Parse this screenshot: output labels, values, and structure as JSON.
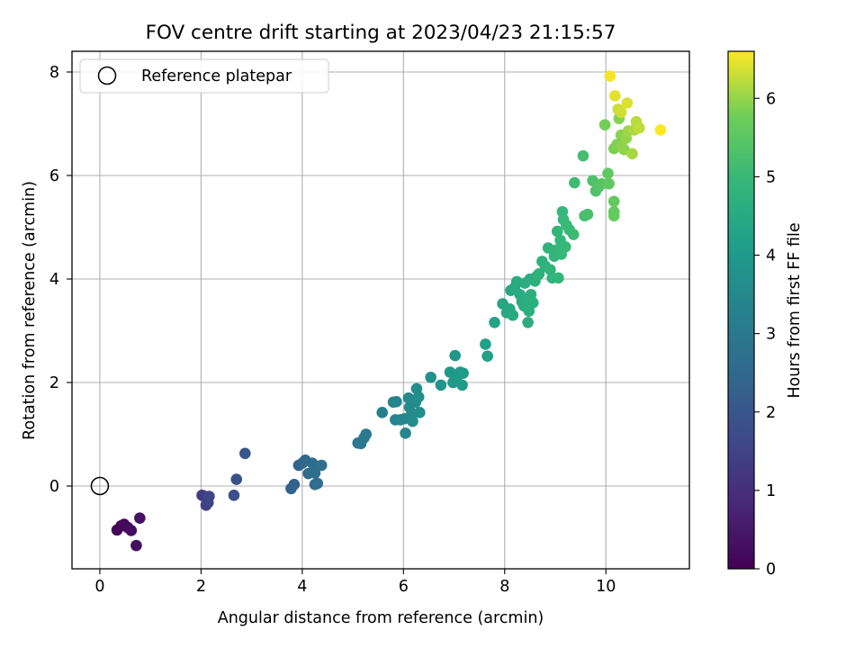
{
  "chart_data": {
    "type": "scatter",
    "title": "FOV centre drift starting at 2023/04/23 21:15:57",
    "xlabel": "Angular distance from reference (arcmin)",
    "ylabel": "Rotation from reference (arcmin)",
    "xlim": [
      -0.55,
      11.65
    ],
    "ylim": [
      -1.6,
      8.4
    ],
    "x_ticks": [
      0,
      2,
      4,
      6,
      8,
      10
    ],
    "y_ticks": [
      0,
      2,
      4,
      6,
      8
    ],
    "grid": true,
    "legend": {
      "position": "upper-left",
      "entries": [
        "Reference platepar"
      ]
    },
    "reference_point": {
      "x": 0,
      "y": 0,
      "label": "Reference platepar"
    },
    "colorbar": {
      "label": "Hours from first FF file",
      "colormap": "viridis",
      "min": 0,
      "max": 6.6,
      "ticks": [
        0,
        1,
        2,
        3,
        4,
        5,
        6
      ]
    },
    "points": [
      {
        "x": 0.34,
        "y": -0.85,
        "h": 0.05
      },
      {
        "x": 0.42,
        "y": -0.77,
        "h": 0.1
      },
      {
        "x": 0.48,
        "y": -0.74,
        "h": 0.15
      },
      {
        "x": 0.55,
        "y": -0.8,
        "h": 0.2
      },
      {
        "x": 0.62,
        "y": -0.86,
        "h": 0.25
      },
      {
        "x": 0.72,
        "y": -1.15,
        "h": 0.3
      },
      {
        "x": 0.79,
        "y": -0.62,
        "h": 0.35
      },
      {
        "x": 2.02,
        "y": -0.18,
        "h": 1.3
      },
      {
        "x": 2.08,
        "y": -0.2,
        "h": 1.35
      },
      {
        "x": 2.12,
        "y": -0.25,
        "h": 1.4
      },
      {
        "x": 2.1,
        "y": -0.37,
        "h": 1.45
      },
      {
        "x": 2.14,
        "y": -0.32,
        "h": 1.5
      },
      {
        "x": 2.16,
        "y": -0.2,
        "h": 1.55
      },
      {
        "x": 2.65,
        "y": -0.18,
        "h": 1.8
      },
      {
        "x": 2.7,
        "y": 0.13,
        "h": 1.9
      },
      {
        "x": 2.87,
        "y": 0.63,
        "h": 2.0
      },
      {
        "x": 3.78,
        "y": -0.05,
        "h": 2.3
      },
      {
        "x": 3.84,
        "y": 0.03,
        "h": 2.35
      },
      {
        "x": 3.93,
        "y": 0.4,
        "h": 2.4
      },
      {
        "x": 4.0,
        "y": 0.44,
        "h": 2.45
      },
      {
        "x": 4.06,
        "y": 0.5,
        "h": 2.5
      },
      {
        "x": 4.12,
        "y": 0.24,
        "h": 2.55
      },
      {
        "x": 4.2,
        "y": 0.44,
        "h": 2.6
      },
      {
        "x": 4.25,
        "y": 0.03,
        "h": 2.65
      },
      {
        "x": 4.3,
        "y": 0.05,
        "h": 2.7
      },
      {
        "x": 4.38,
        "y": 0.4,
        "h": 2.75
      },
      {
        "x": 4.25,
        "y": 0.25,
        "h": 2.7
      },
      {
        "x": 5.1,
        "y": 0.83,
        "h": 2.95
      },
      {
        "x": 5.16,
        "y": 0.82,
        "h": 3.0
      },
      {
        "x": 5.22,
        "y": 0.93,
        "h": 3.02
      },
      {
        "x": 5.26,
        "y": 1.0,
        "h": 3.05
      },
      {
        "x": 5.58,
        "y": 1.42,
        "h": 3.2
      },
      {
        "x": 5.8,
        "y": 1.62,
        "h": 3.35
      },
      {
        "x": 5.86,
        "y": 1.63,
        "h": 3.38
      },
      {
        "x": 5.84,
        "y": 1.28,
        "h": 3.4
      },
      {
        "x": 5.94,
        "y": 1.28,
        "h": 3.42
      },
      {
        "x": 6.02,
        "y": 1.3,
        "h": 3.45
      },
      {
        "x": 6.04,
        "y": 1.02,
        "h": 3.45
      },
      {
        "x": 6.12,
        "y": 1.52,
        "h": 3.5
      },
      {
        "x": 6.1,
        "y": 1.7,
        "h": 3.52
      },
      {
        "x": 6.16,
        "y": 1.4,
        "h": 3.55
      },
      {
        "x": 6.18,
        "y": 1.25,
        "h": 3.57
      },
      {
        "x": 6.24,
        "y": 1.62,
        "h": 3.6
      },
      {
        "x": 6.26,
        "y": 1.88,
        "h": 3.62
      },
      {
        "x": 6.3,
        "y": 1.72,
        "h": 3.64
      },
      {
        "x": 6.32,
        "y": 1.42,
        "h": 3.66
      },
      {
        "x": 6.54,
        "y": 2.1,
        "h": 3.75
      },
      {
        "x": 6.74,
        "y": 1.95,
        "h": 3.85
      },
      {
        "x": 6.92,
        "y": 2.2,
        "h": 3.9
      },
      {
        "x": 6.98,
        "y": 2.0,
        "h": 3.92
      },
      {
        "x": 7.02,
        "y": 2.52,
        "h": 3.95
      },
      {
        "x": 7.06,
        "y": 2.12,
        "h": 3.97
      },
      {
        "x": 7.12,
        "y": 2.2,
        "h": 4.0
      },
      {
        "x": 7.18,
        "y": 2.18,
        "h": 4.02
      },
      {
        "x": 7.16,
        "y": 1.95,
        "h": 4.03
      },
      {
        "x": 7.62,
        "y": 2.74,
        "h": 4.2
      },
      {
        "x": 7.66,
        "y": 2.51,
        "h": 4.22
      },
      {
        "x": 7.8,
        "y": 3.16,
        "h": 4.3
      },
      {
        "x": 7.96,
        "y": 3.52,
        "h": 4.38
      },
      {
        "x": 8.04,
        "y": 3.35,
        "h": 4.42
      },
      {
        "x": 8.1,
        "y": 3.42,
        "h": 4.45
      },
      {
        "x": 8.12,
        "y": 3.78,
        "h": 4.47
      },
      {
        "x": 8.16,
        "y": 3.3,
        "h": 4.48
      },
      {
        "x": 8.2,
        "y": 3.84,
        "h": 4.5
      },
      {
        "x": 8.24,
        "y": 3.95,
        "h": 4.52
      },
      {
        "x": 8.3,
        "y": 3.7,
        "h": 4.55
      },
      {
        "x": 8.34,
        "y": 3.56,
        "h": 4.57
      },
      {
        "x": 8.38,
        "y": 3.48,
        "h": 4.58
      },
      {
        "x": 8.4,
        "y": 3.92,
        "h": 4.6
      },
      {
        "x": 8.44,
        "y": 3.62,
        "h": 4.62
      },
      {
        "x": 8.46,
        "y": 3.16,
        "h": 4.62
      },
      {
        "x": 8.48,
        "y": 3.38,
        "h": 4.64
      },
      {
        "x": 8.5,
        "y": 4.0,
        "h": 4.66
      },
      {
        "x": 8.52,
        "y": 3.7,
        "h": 4.67
      },
      {
        "x": 8.56,
        "y": 3.54,
        "h": 4.68
      },
      {
        "x": 8.6,
        "y": 3.96,
        "h": 4.7
      },
      {
        "x": 8.64,
        "y": 4.06,
        "h": 4.72
      },
      {
        "x": 8.68,
        "y": 4.1,
        "h": 4.74
      },
      {
        "x": 8.74,
        "y": 4.34,
        "h": 4.76
      },
      {
        "x": 8.8,
        "y": 4.25,
        "h": 4.78
      },
      {
        "x": 8.86,
        "y": 4.6,
        "h": 4.8
      },
      {
        "x": 8.9,
        "y": 4.18,
        "h": 4.82
      },
      {
        "x": 8.94,
        "y": 4.02,
        "h": 4.84
      },
      {
        "x": 8.98,
        "y": 4.44,
        "h": 4.86
      },
      {
        "x": 9.02,
        "y": 4.56,
        "h": 4.88
      },
      {
        "x": 9.04,
        "y": 4.92,
        "h": 4.9
      },
      {
        "x": 9.06,
        "y": 4.02,
        "h": 4.9
      },
      {
        "x": 9.1,
        "y": 4.75,
        "h": 4.92
      },
      {
        "x": 9.12,
        "y": 4.48,
        "h": 4.94
      },
      {
        "x": 9.14,
        "y": 5.3,
        "h": 4.95
      },
      {
        "x": 9.16,
        "y": 5.15,
        "h": 4.96
      },
      {
        "x": 9.2,
        "y": 4.62,
        "h": 4.97
      },
      {
        "x": 9.22,
        "y": 5.04,
        "h": 4.98
      },
      {
        "x": 9.28,
        "y": 4.95,
        "h": 5.0
      },
      {
        "x": 9.36,
        "y": 4.86,
        "h": 5.05
      },
      {
        "x": 9.38,
        "y": 5.86,
        "h": 5.1
      },
      {
        "x": 9.55,
        "y": 6.38,
        "h": 5.2
      },
      {
        "x": 9.58,
        "y": 5.22,
        "h": 5.22
      },
      {
        "x": 9.64,
        "y": 5.25,
        "h": 5.25
      },
      {
        "x": 9.74,
        "y": 5.9,
        "h": 5.3
      },
      {
        "x": 9.8,
        "y": 5.7,
        "h": 5.35
      },
      {
        "x": 9.86,
        "y": 5.78,
        "h": 5.4
      },
      {
        "x": 9.92,
        "y": 5.84,
        "h": 5.45
      },
      {
        "x": 10.04,
        "y": 6.04,
        "h": 5.55
      },
      {
        "x": 10.06,
        "y": 5.84,
        "h": 5.57
      },
      {
        "x": 10.16,
        "y": 5.5,
        "h": 5.6
      },
      {
        "x": 10.16,
        "y": 5.3,
        "h": 5.62
      },
      {
        "x": 10.16,
        "y": 5.22,
        "h": 5.64
      },
      {
        "x": 9.98,
        "y": 6.98,
        "h": 5.8
      },
      {
        "x": 10.16,
        "y": 6.52,
        "h": 5.85
      },
      {
        "x": 10.22,
        "y": 6.6,
        "h": 5.88
      },
      {
        "x": 10.26,
        "y": 7.1,
        "h": 5.9
      },
      {
        "x": 10.3,
        "y": 6.78,
        "h": 5.92
      },
      {
        "x": 10.32,
        "y": 6.55,
        "h": 5.94
      },
      {
        "x": 10.36,
        "y": 6.5,
        "h": 5.96
      },
      {
        "x": 10.4,
        "y": 6.72,
        "h": 6.0
      },
      {
        "x": 10.44,
        "y": 6.86,
        "h": 6.05
      },
      {
        "x": 10.52,
        "y": 6.42,
        "h": 6.1
      },
      {
        "x": 10.56,
        "y": 6.88,
        "h": 6.15
      },
      {
        "x": 10.6,
        "y": 7.04,
        "h": 6.2
      },
      {
        "x": 10.66,
        "y": 6.92,
        "h": 6.25
      },
      {
        "x": 10.24,
        "y": 7.28,
        "h": 6.3
      },
      {
        "x": 10.3,
        "y": 7.22,
        "h": 6.35
      },
      {
        "x": 10.42,
        "y": 7.4,
        "h": 6.4
      },
      {
        "x": 10.18,
        "y": 7.54,
        "h": 6.45
      },
      {
        "x": 10.08,
        "y": 7.92,
        "h": 6.55
      },
      {
        "x": 11.08,
        "y": 6.88,
        "h": 6.6
      }
    ]
  }
}
